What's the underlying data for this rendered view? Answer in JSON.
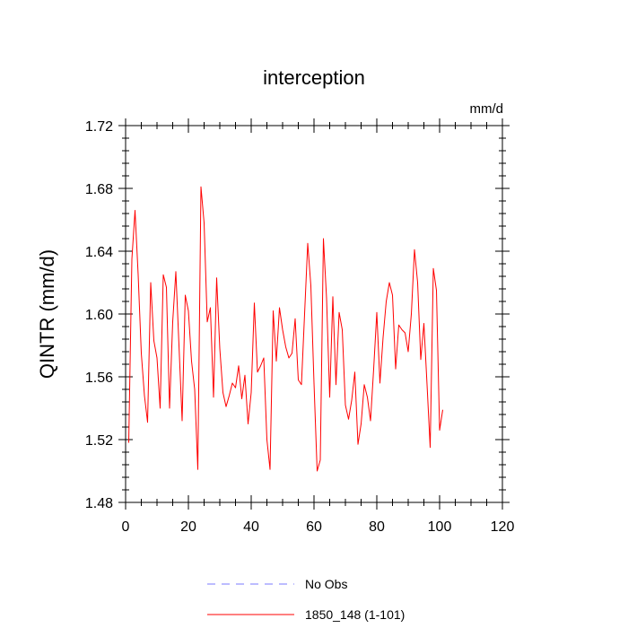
{
  "chart_data": {
    "type": "line",
    "title": "interception",
    "units": "mm/d",
    "ylabel": "QINTR  (mm/d)",
    "xlabel": "",
    "xlim": [
      0,
      120
    ],
    "ylim": [
      1.48,
      1.72
    ],
    "xticks": [
      0,
      20,
      40,
      60,
      80,
      100,
      120
    ],
    "yticks": [
      1.48,
      1.52,
      1.56,
      1.6,
      1.64,
      1.68,
      1.72
    ],
    "ytick_labels": [
      "1.48",
      "1.52",
      "1.56",
      "1.60",
      "1.64",
      "1.68",
      "1.72"
    ],
    "xtick_labels": [
      "0",
      "20",
      "40",
      "60",
      "80",
      "100",
      "120"
    ],
    "series": [
      {
        "name": "1850_148 (1-101)",
        "color": "#ff0000",
        "x_start": 1,
        "values": [
          1.518,
          1.635,
          1.666,
          1.625,
          1.575,
          1.548,
          1.531,
          1.62,
          1.583,
          1.572,
          1.54,
          1.625,
          1.617,
          1.54,
          1.595,
          1.627,
          1.58,
          1.532,
          1.612,
          1.602,
          1.57,
          1.552,
          1.501,
          1.681,
          1.658,
          1.595,
          1.604,
          1.547,
          1.623,
          1.578,
          1.55,
          1.541,
          1.548,
          1.556,
          1.553,
          1.567,
          1.546,
          1.561,
          1.53,
          1.55,
          1.607,
          1.563,
          1.567,
          1.572,
          1.52,
          1.501,
          1.602,
          1.57,
          1.604,
          1.59,
          1.579,
          1.572,
          1.575,
          1.597,
          1.558,
          1.555,
          1.6,
          1.645,
          1.618,
          1.556,
          1.5,
          1.507,
          1.648,
          1.61,
          1.547,
          1.611,
          1.555,
          1.601,
          1.59,
          1.542,
          1.533,
          1.545,
          1.563,
          1.517,
          1.53,
          1.555,
          1.547,
          1.532,
          1.565,
          1.601,
          1.556,
          1.585,
          1.608,
          1.62,
          1.612,
          1.565,
          1.593,
          1.59,
          1.588,
          1.576,
          1.6,
          1.641,
          1.62,
          1.571,
          1.594,
          1.555,
          1.515,
          1.629,
          1.615,
          1.526,
          1.539
        ]
      }
    ],
    "legend": [
      {
        "label": "No Obs",
        "color": "#7a7aff",
        "style": "dashed"
      },
      {
        "label": "1850_148 (1-101)",
        "color": "#ff0000",
        "style": "solid"
      }
    ]
  }
}
